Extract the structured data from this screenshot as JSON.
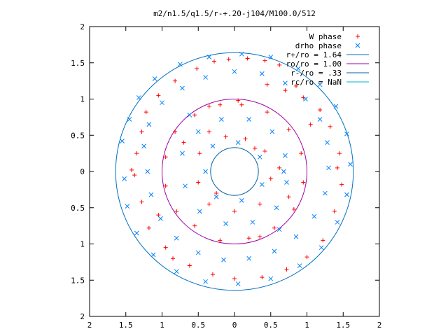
{
  "chart_data": {
    "type": "scatter",
    "title": "m2/n1.5/q1.5/r-+.20-j104/M100.0/512",
    "xlabel": "",
    "ylabel": "",
    "xlim": [
      -2,
      2
    ],
    "ylim": [
      -2,
      2
    ],
    "x_ticks": [
      -2,
      -1.5,
      -1,
      -0.5,
      0,
      0.5,
      1,
      1.5,
      2
    ],
    "y_ticks": [
      -2,
      -1.5,
      -1,
      -0.5,
      0,
      0.5,
      1,
      1.5,
      2
    ],
    "x_tick_labels": [
      "2",
      "1.5",
      "1",
      "0.5",
      "0",
      "0.5",
      "1",
      "1.5",
      "2"
    ],
    "y_tick_labels": [
      "2",
      "1.5",
      "1",
      "0.5",
      "0",
      "0.5",
      "1",
      "1.5",
      "2"
    ],
    "grid": false,
    "legend_position": "top-right",
    "colors": {
      "w_phase": "#ff0000",
      "drho_phase": "#0080ff",
      "r_plus": "#0070c0",
      "ro": "#a000a0",
      "r_minus": "#0060a0",
      "rc": "#00b0d0"
    },
    "series": [
      {
        "name": "W phase",
        "marker": "+",
        "points": [
          [
            -0.28,
            1.52
          ],
          [
            -0.08,
            1.55
          ],
          [
            0.18,
            1.56
          ],
          [
            0.42,
            1.53
          ],
          [
            0.62,
            1.47
          ],
          [
            -0.52,
            1.42
          ],
          [
            -0.82,
            1.25
          ],
          [
            -1.05,
            1.05
          ],
          [
            -1.22,
            0.82
          ],
          [
            -1.28,
            0.55
          ],
          [
            -1.35,
            0.25
          ],
          [
            -1.38,
            -0.05
          ],
          [
            -1.28,
            -0.42
          ],
          [
            -1.18,
            -0.78
          ],
          [
            -0.95,
            -1.05
          ],
          [
            -0.62,
            -1.3
          ],
          [
            -0.3,
            -1.42
          ],
          [
            0.0,
            -1.48
          ],
          [
            0.38,
            -1.46
          ],
          [
            0.72,
            -1.35
          ],
          [
            1.0,
            -1.18
          ],
          [
            1.22,
            -0.95
          ],
          [
            1.38,
            -0.55
          ],
          [
            1.48,
            -0.18
          ],
          [
            1.45,
            0.25
          ],
          [
            1.32,
            0.62
          ],
          [
            1.18,
            0.85
          ],
          [
            0.95,
            1.02
          ],
          [
            0.7,
            1.12
          ],
          [
            0.45,
            1.2
          ],
          [
            0.05,
            0.98
          ],
          [
            0.1,
            0.92
          ],
          [
            -0.2,
            0.92
          ],
          [
            -0.55,
            0.78
          ],
          [
            -0.82,
            0.55
          ],
          [
            -0.95,
            0.2
          ],
          [
            -0.95,
            -0.2
          ],
          [
            -0.8,
            -0.55
          ],
          [
            -0.55,
            -0.75
          ],
          [
            -0.2,
            -0.95
          ],
          [
            0.2,
            -0.92
          ],
          [
            0.55,
            -0.78
          ],
          [
            0.82,
            -0.52
          ],
          [
            0.95,
            -0.15
          ],
          [
            0.92,
            0.25
          ],
          [
            0.75,
            0.58
          ],
          [
            0.45,
            0.82
          ],
          [
            -0.35,
            0.55
          ],
          [
            -0.48,
            0.25
          ],
          [
            -0.5,
            -0.15
          ],
          [
            -0.35,
            -0.45
          ],
          [
            0.0,
            -0.55
          ],
          [
            0.35,
            -0.45
          ],
          [
            0.5,
            -0.1
          ],
          [
            0.42,
            0.28
          ],
          [
            0.15,
            0.45
          ],
          [
            -0.12,
            0.48
          ],
          [
            0.28,
            0.32
          ],
          [
            -0.25,
            -0.3
          ],
          [
            0.62,
            0.05
          ],
          [
            0.75,
            -0.35
          ],
          [
            -0.7,
            0.4
          ],
          [
            -0.35,
            0.9
          ],
          [
            0.35,
            -0.9
          ],
          [
            1.05,
            0.65
          ],
          [
            -1.05,
            -0.6
          ],
          [
            0.85,
            1.18
          ],
          [
            -0.85,
            -1.2
          ],
          [
            1.42,
            0.05
          ],
          [
            -1.42,
            0.02
          ]
        ]
      },
      {
        "name": "drho phase",
        "marker": "x",
        "points": [
          [
            -1.55,
            0.42
          ],
          [
            -1.45,
            0.72
          ],
          [
            -1.32,
            1.02
          ],
          [
            -1.1,
            1.28
          ],
          [
            -0.75,
            1.48
          ],
          [
            -0.35,
            1.58
          ],
          [
            0.1,
            1.62
          ],
          [
            0.5,
            1.58
          ],
          [
            0.88,
            1.42
          ],
          [
            1.18,
            1.2
          ],
          [
            1.4,
            0.9
          ],
          [
            1.55,
            0.52
          ],
          [
            1.6,
            0.1
          ],
          [
            1.55,
            -0.32
          ],
          [
            1.42,
            -0.7
          ],
          [
            1.2,
            -1.05
          ],
          [
            0.9,
            -1.3
          ],
          [
            0.5,
            -1.48
          ],
          [
            0.05,
            -1.55
          ],
          [
            -0.4,
            -1.52
          ],
          [
            -0.8,
            -1.38
          ],
          [
            -1.12,
            -1.15
          ],
          [
            -1.35,
            -0.85
          ],
          [
            -1.48,
            -0.48
          ],
          [
            -1.52,
            -0.1
          ],
          [
            -1.25,
            0.35
          ],
          [
            -1.18,
            0.65
          ],
          [
            -1.0,
            0.95
          ],
          [
            -0.72,
            1.15
          ],
          [
            -0.4,
            1.3
          ],
          [
            0.0,
            1.38
          ],
          [
            0.38,
            1.35
          ],
          [
            0.7,
            1.22
          ],
          [
            0.98,
            1.0
          ],
          [
            1.18,
            0.72
          ],
          [
            1.28,
            0.4
          ],
          [
            1.3,
            0.05
          ],
          [
            1.25,
            -0.3
          ],
          [
            1.1,
            -0.62
          ],
          [
            0.85,
            -0.9
          ],
          [
            0.55,
            -1.1
          ],
          [
            0.2,
            -1.2
          ],
          [
            -0.15,
            -1.22
          ],
          [
            -0.5,
            -1.12
          ],
          [
            -0.8,
            -0.92
          ],
          [
            -1.02,
            -0.65
          ],
          [
            -1.15,
            -0.32
          ],
          [
            -1.2,
            0.0
          ],
          [
            -0.72,
            0.25
          ],
          [
            -0.68,
            -0.2
          ],
          [
            -0.48,
            -0.55
          ],
          [
            -0.12,
            -0.72
          ],
          [
            0.25,
            -0.7
          ],
          [
            0.58,
            -0.5
          ],
          [
            0.72,
            -0.15
          ],
          [
            0.7,
            0.22
          ],
          [
            0.52,
            0.55
          ],
          [
            0.2,
            0.72
          ],
          [
            -0.18,
            0.72
          ],
          [
            -0.5,
            0.55
          ],
          [
            -0.3,
            0.35
          ],
          [
            0.05,
            0.4
          ],
          [
            0.35,
            0.2
          ],
          [
            0.38,
            -0.18
          ],
          [
            0.1,
            -0.4
          ],
          [
            -0.25,
            -0.35
          ],
          [
            -0.4,
            0.0
          ],
          [
            0.68,
            0.0
          ],
          [
            -0.62,
            0.78
          ],
          [
            0.62,
            -0.8
          ]
        ]
      }
    ],
    "lines": [
      {
        "name": "r+/ro = 1.64",
        "radius": 1.64
      },
      {
        "name": "ro/ro = 1.00",
        "radius": 1.0
      },
      {
        "name": "r-/ro = .33",
        "radius": 0.33
      },
      {
        "name": "rc/ro = NaN",
        "radius": null
      }
    ]
  }
}
